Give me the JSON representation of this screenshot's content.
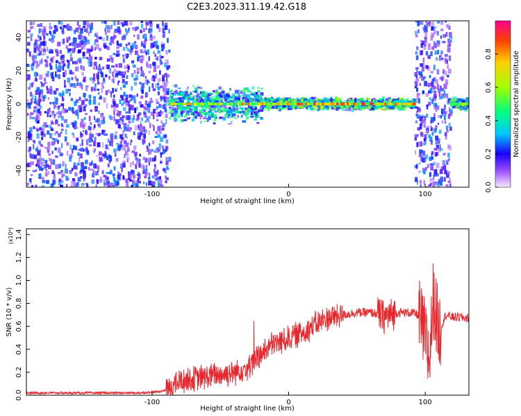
{
  "title": "C2E3.2023.311.19.42.G18",
  "chart_data": [
    {
      "type": "heatmap",
      "xlabel": "Height of straight line (km)",
      "ylabel": "Frequency (Hz)",
      "xlim": [
        -192,
        132
      ],
      "ylim": [
        -50,
        50
      ],
      "x_ticks": [
        -100,
        0,
        100
      ],
      "y_ticks": [
        -40,
        -20,
        0,
        20,
        40
      ],
      "colorbar": {
        "label": "Normalized spectral amplitude",
        "range": [
          0.0,
          1.0
        ],
        "ticks": [
          "0.0",
          "0.2",
          "0.4",
          "0.6",
          "0.8"
        ]
      },
      "regions": [
        {
          "x_from": -192,
          "x_to": -88,
          "freq_half_width": 50,
          "amplitude": 0.2
        },
        {
          "x_from": -88,
          "x_to": -20,
          "freq_half_width": 12,
          "amplitude": 0.35
        },
        {
          "x_from": -20,
          "x_to": 92,
          "freq_half_width": 4,
          "amplitude": 0.45
        },
        {
          "x_from": 92,
          "x_to": 118,
          "freq_half_width": 50,
          "amplitude": 0.2
        },
        {
          "x_from": 118,
          "x_to": 132,
          "freq_half_width": 4,
          "amplitude": 0.4
        }
      ]
    },
    {
      "type": "line",
      "xlabel": "Height of straight line (km)",
      "ylabel": "SNR (10 * v/v)",
      "y_multiplier": "(x10⁴)",
      "xlim": [
        -192,
        132
      ],
      "ylim": [
        0,
        1.45
      ],
      "x_ticks": [
        -100,
        0,
        100
      ],
      "y_ticks": [
        "0.0",
        "0.2",
        "0.4",
        "0.6",
        "0.8",
        "1.0",
        "1.2",
        "1.4"
      ],
      "series": [
        {
          "color": "#e8262b",
          "x": [
            -192,
            -150,
            -110,
            -95,
            -88,
            -80,
            -70,
            -60,
            -50,
            -40,
            -30,
            -25,
            -20,
            -15,
            -10,
            -5,
            0,
            5,
            10,
            15,
            20,
            25,
            30,
            40,
            50,
            60,
            65,
            70,
            75,
            80,
            90,
            95,
            100,
            103,
            106,
            110,
            115,
            120,
            125,
            132
          ],
          "y": [
            0.02,
            0.02,
            0.02,
            0.03,
            0.05,
            0.12,
            0.14,
            0.16,
            0.18,
            0.2,
            0.25,
            0.3,
            0.35,
            0.42,
            0.45,
            0.47,
            0.5,
            0.52,
            0.55,
            0.58,
            0.62,
            0.65,
            0.68,
            0.7,
            0.72,
            0.72,
            0.71,
            0.68,
            0.7,
            0.72,
            0.72,
            0.7,
            0.5,
            0.3,
            0.85,
            0.55,
            0.7,
            0.68,
            0.68,
            0.67
          ]
        }
      ]
    }
  ]
}
